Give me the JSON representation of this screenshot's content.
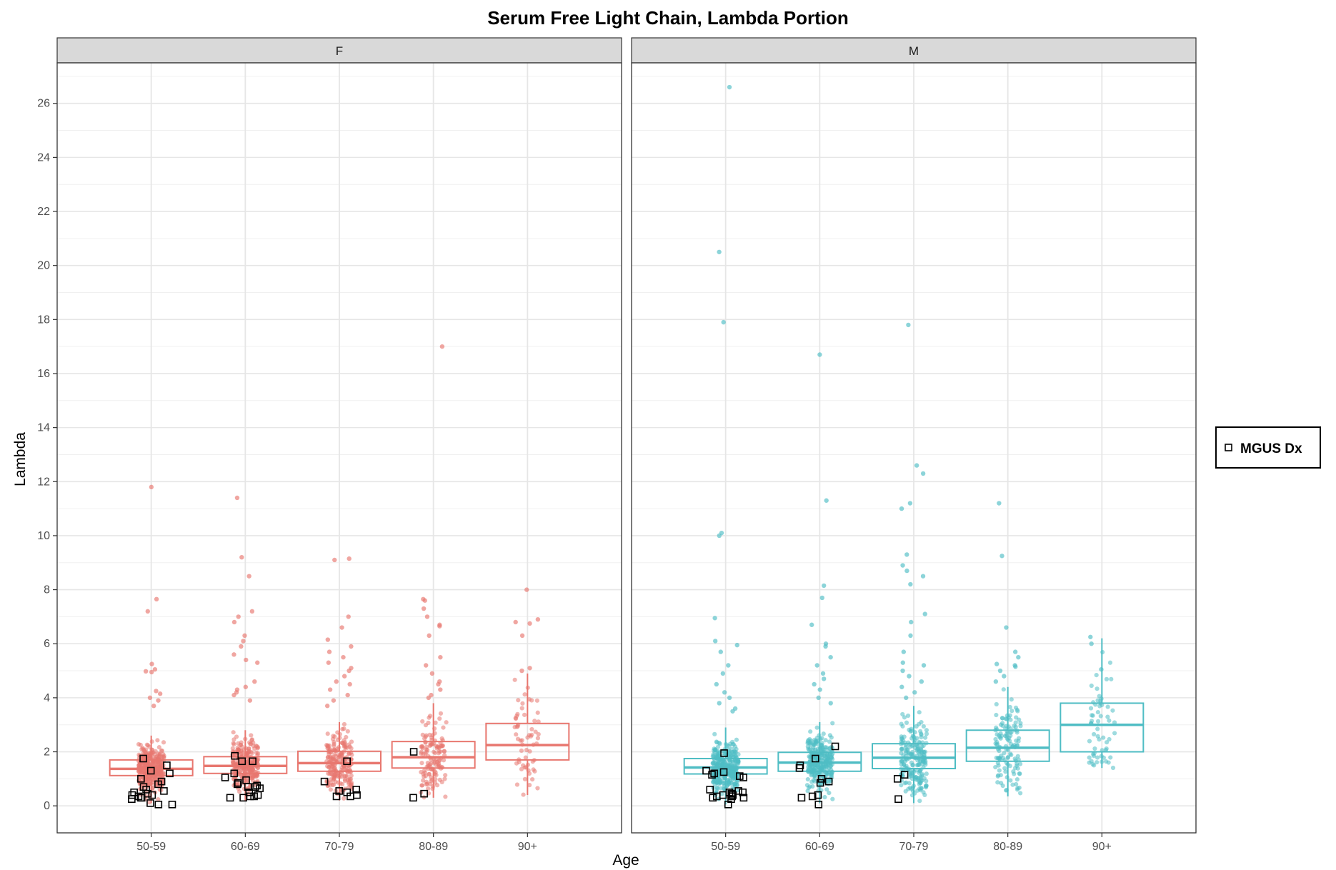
{
  "chart_data": {
    "type": "box",
    "title": "Serum Free Light Chain, Lambda Portion",
    "xlabel": "Age",
    "ylabel": "Lambda",
    "ylim": [
      -1,
      27.5
    ],
    "yticks": [
      "0",
      "2",
      "4",
      "6",
      "8",
      "10",
      "12",
      "14",
      "16",
      "18",
      "20",
      "22",
      "24",
      "26"
    ],
    "categories": [
      "50-59",
      "60-69",
      "70-79",
      "80-89",
      "90+"
    ],
    "grid": true,
    "legend": {
      "position": "right",
      "entries": [
        {
          "label": "MGUS Dx",
          "shape": "open-square"
        }
      ]
    },
    "panels": [
      {
        "name": "F",
        "color": "#e8776f",
        "boxes": [
          {
            "category": "50-59",
            "q1": 1.12,
            "median": 1.37,
            "q3": 1.7,
            "whisker_low": 0.1,
            "whisker_high": 2.6
          },
          {
            "category": "60-69",
            "q1": 1.2,
            "median": 1.48,
            "q3": 1.82,
            "whisker_low": 0.2,
            "whisker_high": 2.8
          },
          {
            "category": "70-79",
            "q1": 1.28,
            "median": 1.58,
            "q3": 2.02,
            "whisker_low": 0.2,
            "whisker_high": 3.1
          },
          {
            "category": "80-89",
            "q1": 1.4,
            "median": 1.8,
            "q3": 2.38,
            "whisker_low": 0.3,
            "whisker_high": 3.8
          },
          {
            "category": "90+",
            "q1": 1.7,
            "median": 2.25,
            "q3": 3.05,
            "whisker_low": 0.4,
            "whisker_high": 4.9
          }
        ],
        "outliers": [
          {
            "category": "50-59",
            "values": [
              11.8,
              7.65,
              7.2,
              5.25,
              5.05,
              4.98,
              4.95,
              4.25,
              4.15,
              4.0,
              3.9,
              3.7
            ]
          },
          {
            "category": "60-69",
            "values": [
              11.4,
              9.2,
              8.5,
              7.2,
              7.0,
              6.8,
              6.3,
              6.1,
              5.9,
              5.6,
              5.4,
              5.3,
              4.6,
              4.4,
              4.3,
              4.2,
              4.1,
              3.9
            ]
          },
          {
            "category": "70-79",
            "values": [
              9.15,
              9.1,
              7.0,
              6.6,
              6.15,
              5.9,
              5.7,
              5.5,
              5.3,
              5.1,
              5.0,
              4.8,
              4.6,
              4.5,
              4.3,
              4.1,
              3.9,
              3.7
            ]
          },
          {
            "category": "80-89",
            "values": [
              17.0,
              7.65,
              7.6,
              7.3,
              7.0,
              6.7,
              6.65,
              6.3,
              5.5,
              5.2,
              4.9,
              4.6,
              4.5,
              4.3,
              4.1,
              4.0
            ]
          },
          {
            "category": "90+",
            "values": [
              8.0,
              6.9,
              6.8,
              6.75,
              6.3,
              5.1,
              5.0
            ]
          }
        ],
        "mgus": [
          {
            "category": "50-59",
            "values": [
              1.75,
              1.5,
              1.3,
              1.2,
              1.0,
              0.9,
              0.8,
              0.7,
              0.6,
              0.55,
              0.5,
              0.45,
              0.4,
              0.4,
              0.35,
              0.3,
              0.3,
              0.25,
              0.1,
              0.05,
              0.05
            ]
          },
          {
            "category": "60-69",
            "values": [
              1.85,
              1.65,
              1.65,
              1.2,
              1.05,
              0.95,
              0.85,
              0.8,
              0.75,
              0.7,
              0.7,
              0.65,
              0.5,
              0.4,
              0.35,
              0.35,
              0.3,
              0.3
            ]
          },
          {
            "category": "70-79",
            "values": [
              1.65,
              0.9,
              0.6,
              0.55,
              0.5,
              0.4,
              0.35,
              0.35
            ]
          },
          {
            "category": "80-89",
            "values": [
              2.0,
              0.45,
              0.3
            ]
          },
          {
            "category": "90+",
            "values": []
          }
        ]
      },
      {
        "name": "M",
        "color": "#4fbdc4",
        "boxes": [
          {
            "category": "50-59",
            "q1": 1.18,
            "median": 1.42,
            "q3": 1.75,
            "whisker_low": 0.05,
            "whisker_high": 2.9
          },
          {
            "category": "60-69",
            "q1": 1.28,
            "median": 1.6,
            "q3": 1.98,
            "whisker_low": 0.1,
            "whisker_high": 3.1
          },
          {
            "category": "70-79",
            "q1": 1.38,
            "median": 1.78,
            "q3": 2.3,
            "whisker_low": 0.1,
            "whisker_high": 3.7
          },
          {
            "category": "80-89",
            "q1": 1.65,
            "median": 2.15,
            "q3": 2.8,
            "whisker_low": 0.35,
            "whisker_high": 4.4
          },
          {
            "category": "90+",
            "q1": 2.0,
            "median": 3.0,
            "q3": 3.8,
            "whisker_low": 1.4,
            "whisker_high": 6.2
          }
        ],
        "outliers": [
          {
            "category": "50-59",
            "values": [
              26.6,
              20.5,
              17.9,
              10.1,
              10.0,
              6.95,
              6.1,
              5.95,
              5.7,
              5.2,
              4.9,
              4.5,
              4.2,
              4.0,
              3.8,
              3.6,
              3.5
            ]
          },
          {
            "category": "60-69",
            "values": [
              16.7,
              11.3,
              8.15,
              7.7,
              6.7,
              6.0,
              5.9,
              5.5,
              5.2,
              4.9,
              4.7,
              4.5,
              4.3,
              4.0,
              3.8
            ]
          },
          {
            "category": "70-79",
            "values": [
              17.8,
              12.6,
              12.3,
              11.2,
              11.0,
              9.3,
              8.9,
              8.7,
              8.5,
              8.2,
              7.1,
              6.8,
              6.3,
              5.7,
              5.3,
              5.2,
              5.0,
              4.8,
              4.6,
              4.4,
              4.2,
              4.0
            ]
          },
          {
            "category": "80-89",
            "values": [
              11.2,
              9.25,
              6.6,
              5.7,
              5.5,
              5.25,
              5.2,
              5.15,
              5.0,
              4.8,
              4.6
            ]
          },
          {
            "category": "90+",
            "values": [
              6.25,
              6.0,
              5.05
            ]
          }
        ],
        "mgus": [
          {
            "category": "50-59",
            "values": [
              1.95,
              1.3,
              1.25,
              1.2,
              1.15,
              1.1,
              1.05,
              0.6,
              0.55,
              0.5,
              0.5,
              0.45,
              0.45,
              0.4,
              0.4,
              0.35,
              0.35,
              0.3,
              0.3,
              0.25,
              0.05
            ]
          },
          {
            "category": "60-69",
            "values": [
              2.2,
              1.75,
              1.5,
              1.4,
              1.0,
              0.9,
              0.85,
              0.4,
              0.35,
              0.3,
              0.05
            ]
          },
          {
            "category": "70-79",
            "values": [
              1.15,
              1.0,
              0.25
            ]
          },
          {
            "category": "80-89",
            "values": []
          },
          {
            "category": "90+",
            "values": []
          }
        ]
      }
    ]
  }
}
